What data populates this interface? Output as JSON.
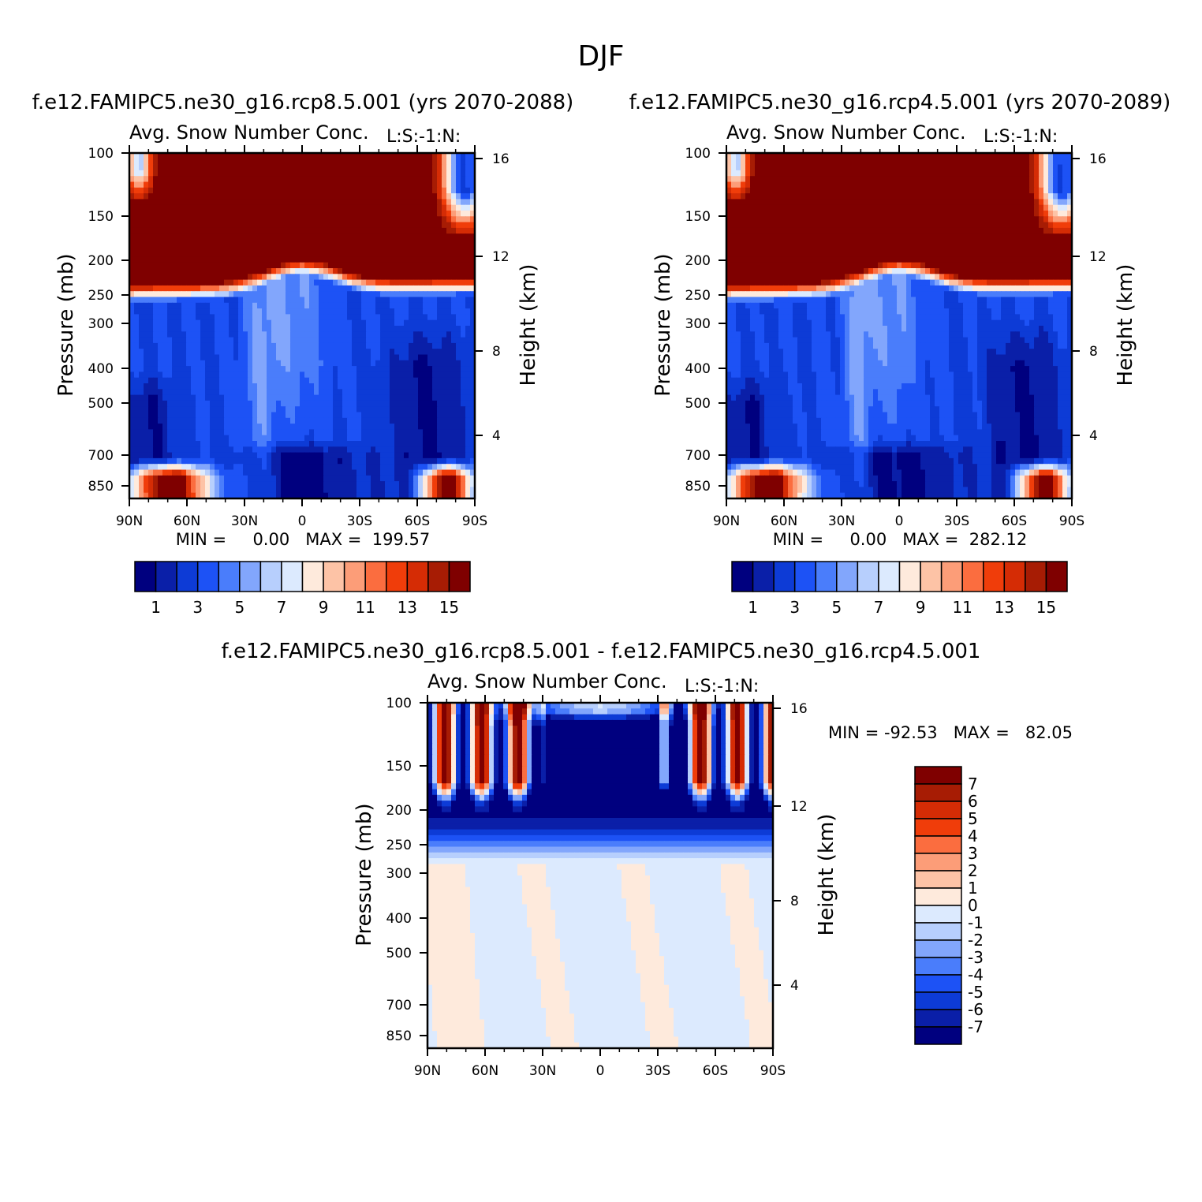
{
  "figure_title": "DJF",
  "colors": {
    "levels_main": [
      "#00007f",
      "#0a1fa8",
      "#0d3bd6",
      "#1d52f5",
      "#4a7dfb",
      "#82a6fc",
      "#b7cffd",
      "#dceafe",
      "#feeadc",
      "#fdc3a6",
      "#fc9d78",
      "#fb6d3f",
      "#f03d0a",
      "#d52c05",
      "#a71c04",
      "#7f0000"
    ],
    "levels_diff": [
      "#00007f",
      "#0a1fa8",
      "#0d3bd6",
      "#1d52f5",
      "#4a7dfb",
      "#82a6fc",
      "#b7cffd",
      "#dceafe",
      "#feeadc",
      "#fdc3a6",
      "#fc9d78",
      "#fb6d3f",
      "#f03d0a",
      "#d52c05",
      "#a71c04",
      "#7f0000"
    ]
  },
  "chart_data": [
    {
      "type": "heatmap",
      "title": "f.e12.FAMIPC5.ne30_g16.rcp8.5.001 (yrs 2070-2088)",
      "subtitle": "Avg. Snow Number Conc.",
      "units_label": "L:S:-1:N:",
      "xlabel": "",
      "ylabel": "Pressure (mb)",
      "ylabel_right": "Height (km)",
      "x_ticks": [
        "90N",
        "60N",
        "30N",
        "0",
        "30S",
        "60S",
        "90S"
      ],
      "y_ticks": [
        100,
        150,
        200,
        250,
        300,
        400,
        500,
        700,
        850
      ],
      "y_ticks_right": [
        16,
        12,
        8,
        4
      ],
      "y_scale": "log",
      "ylim": [
        100,
        1000
      ],
      "stats": "MIN =     0.00   MAX =  199.57",
      "min": 0.0,
      "max": 199.57,
      "colorbar_labels": [
        "1",
        "3",
        "5",
        "7",
        "9",
        "11",
        "13",
        "15"
      ]
    },
    {
      "type": "heatmap",
      "title": "f.e12.FAMIPC5.ne30_g16.rcp4.5.001 (yrs 2070-2089)",
      "subtitle": "Avg. Snow Number Conc.",
      "units_label": "L:S:-1:N:",
      "xlabel": "",
      "ylabel": "Pressure (mb)",
      "ylabel_right": "Height (km)",
      "x_ticks": [
        "90N",
        "60N",
        "30N",
        "0",
        "30S",
        "60S",
        "90S"
      ],
      "y_ticks": [
        100,
        150,
        200,
        250,
        300,
        400,
        500,
        700,
        850
      ],
      "y_ticks_right": [
        16,
        12,
        8,
        4
      ],
      "y_scale": "log",
      "ylim": [
        100,
        1000
      ],
      "stats": "MIN =     0.00   MAX =  282.12",
      "min": 0.0,
      "max": 282.12,
      "colorbar_labels": [
        "1",
        "3",
        "5",
        "7",
        "9",
        "11",
        "13",
        "15"
      ]
    },
    {
      "type": "heatmap",
      "title": "f.e12.FAMIPC5.ne30_g16.rcp8.5.001 - f.e12.FAMIPC5.ne30_g16.rcp4.5.001",
      "subtitle": "Avg. Snow Number Conc.",
      "units_label": "L:S:-1:N:",
      "xlabel": "",
      "ylabel": "Pressure (mb)",
      "ylabel_right": "Height (km)",
      "x_ticks": [
        "90N",
        "60N",
        "30N",
        "0",
        "30S",
        "60S",
        "90S"
      ],
      "y_ticks": [
        100,
        150,
        200,
        250,
        300,
        400,
        500,
        700,
        850
      ],
      "y_ticks_right": [
        16,
        12,
        8,
        4
      ],
      "y_scale": "log",
      "ylim": [
        100,
        1000
      ],
      "stats": "MIN = -92.53   MAX =   82.05",
      "min": -92.53,
      "max": 82.05,
      "colorbar_labels": [
        "7",
        "6",
        "5",
        "4",
        "3",
        "2",
        "1",
        "0",
        "-1",
        "-2",
        "-3",
        "-4",
        "-5",
        "-6",
        "-7"
      ]
    }
  ]
}
